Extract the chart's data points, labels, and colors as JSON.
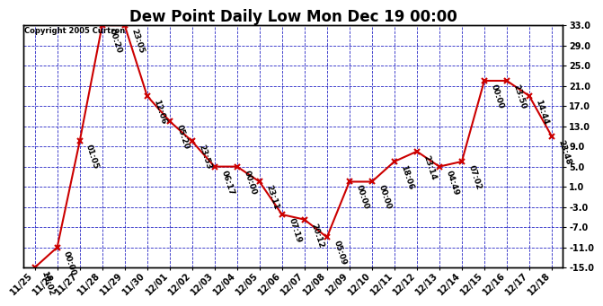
{
  "title": "Dew Point Daily Low Mon Dec 19 00:00",
  "copyright": "Copyright 2005 Curtron",
  "x_labels": [
    "11/25",
    "11/26",
    "11/27",
    "11/28",
    "11/29",
    "11/30",
    "12/01",
    "12/02",
    "12/03",
    "12/04",
    "12/05",
    "12/06",
    "12/07",
    "12/08",
    "12/09",
    "12/10",
    "12/11",
    "12/12",
    "12/13",
    "12/14",
    "12/15",
    "12/16",
    "12/17",
    "12/18"
  ],
  "y_values": [
    -15.0,
    -11.0,
    10.0,
    33.0,
    33.0,
    19.0,
    14.0,
    10.0,
    5.0,
    5.0,
    2.0,
    -4.5,
    -5.5,
    -9.0,
    2.0,
    2.0,
    6.0,
    8.0,
    5.0,
    6.0,
    22.0,
    22.0,
    19.0,
    11.0
  ],
  "time_labels": [
    "10:02",
    "00:00",
    "01:05",
    "00:20",
    "23:05",
    "12:06",
    "05:20",
    "23:53",
    "06:17",
    "00:00",
    "23:11",
    "07:19",
    "20:12",
    "05:09",
    "00:00",
    "00:00",
    "18:06",
    "23:14",
    "04:49",
    "07:02",
    "00:00",
    "23:50",
    "14:44",
    "23:48"
  ],
  "ylim_min": -15.0,
  "ylim_max": 33.0,
  "yticks": [
    -15.0,
    -11.0,
    -7.0,
    -3.0,
    1.0,
    5.0,
    9.0,
    13.0,
    17.0,
    21.0,
    25.0,
    29.0,
    33.0
  ],
  "line_color": "#cc0000",
  "grid_color": "#0000bb",
  "background_color": "#ffffff",
  "title_fontsize": 12,
  "tick_fontsize": 7,
  "annot_fontsize": 6.5
}
